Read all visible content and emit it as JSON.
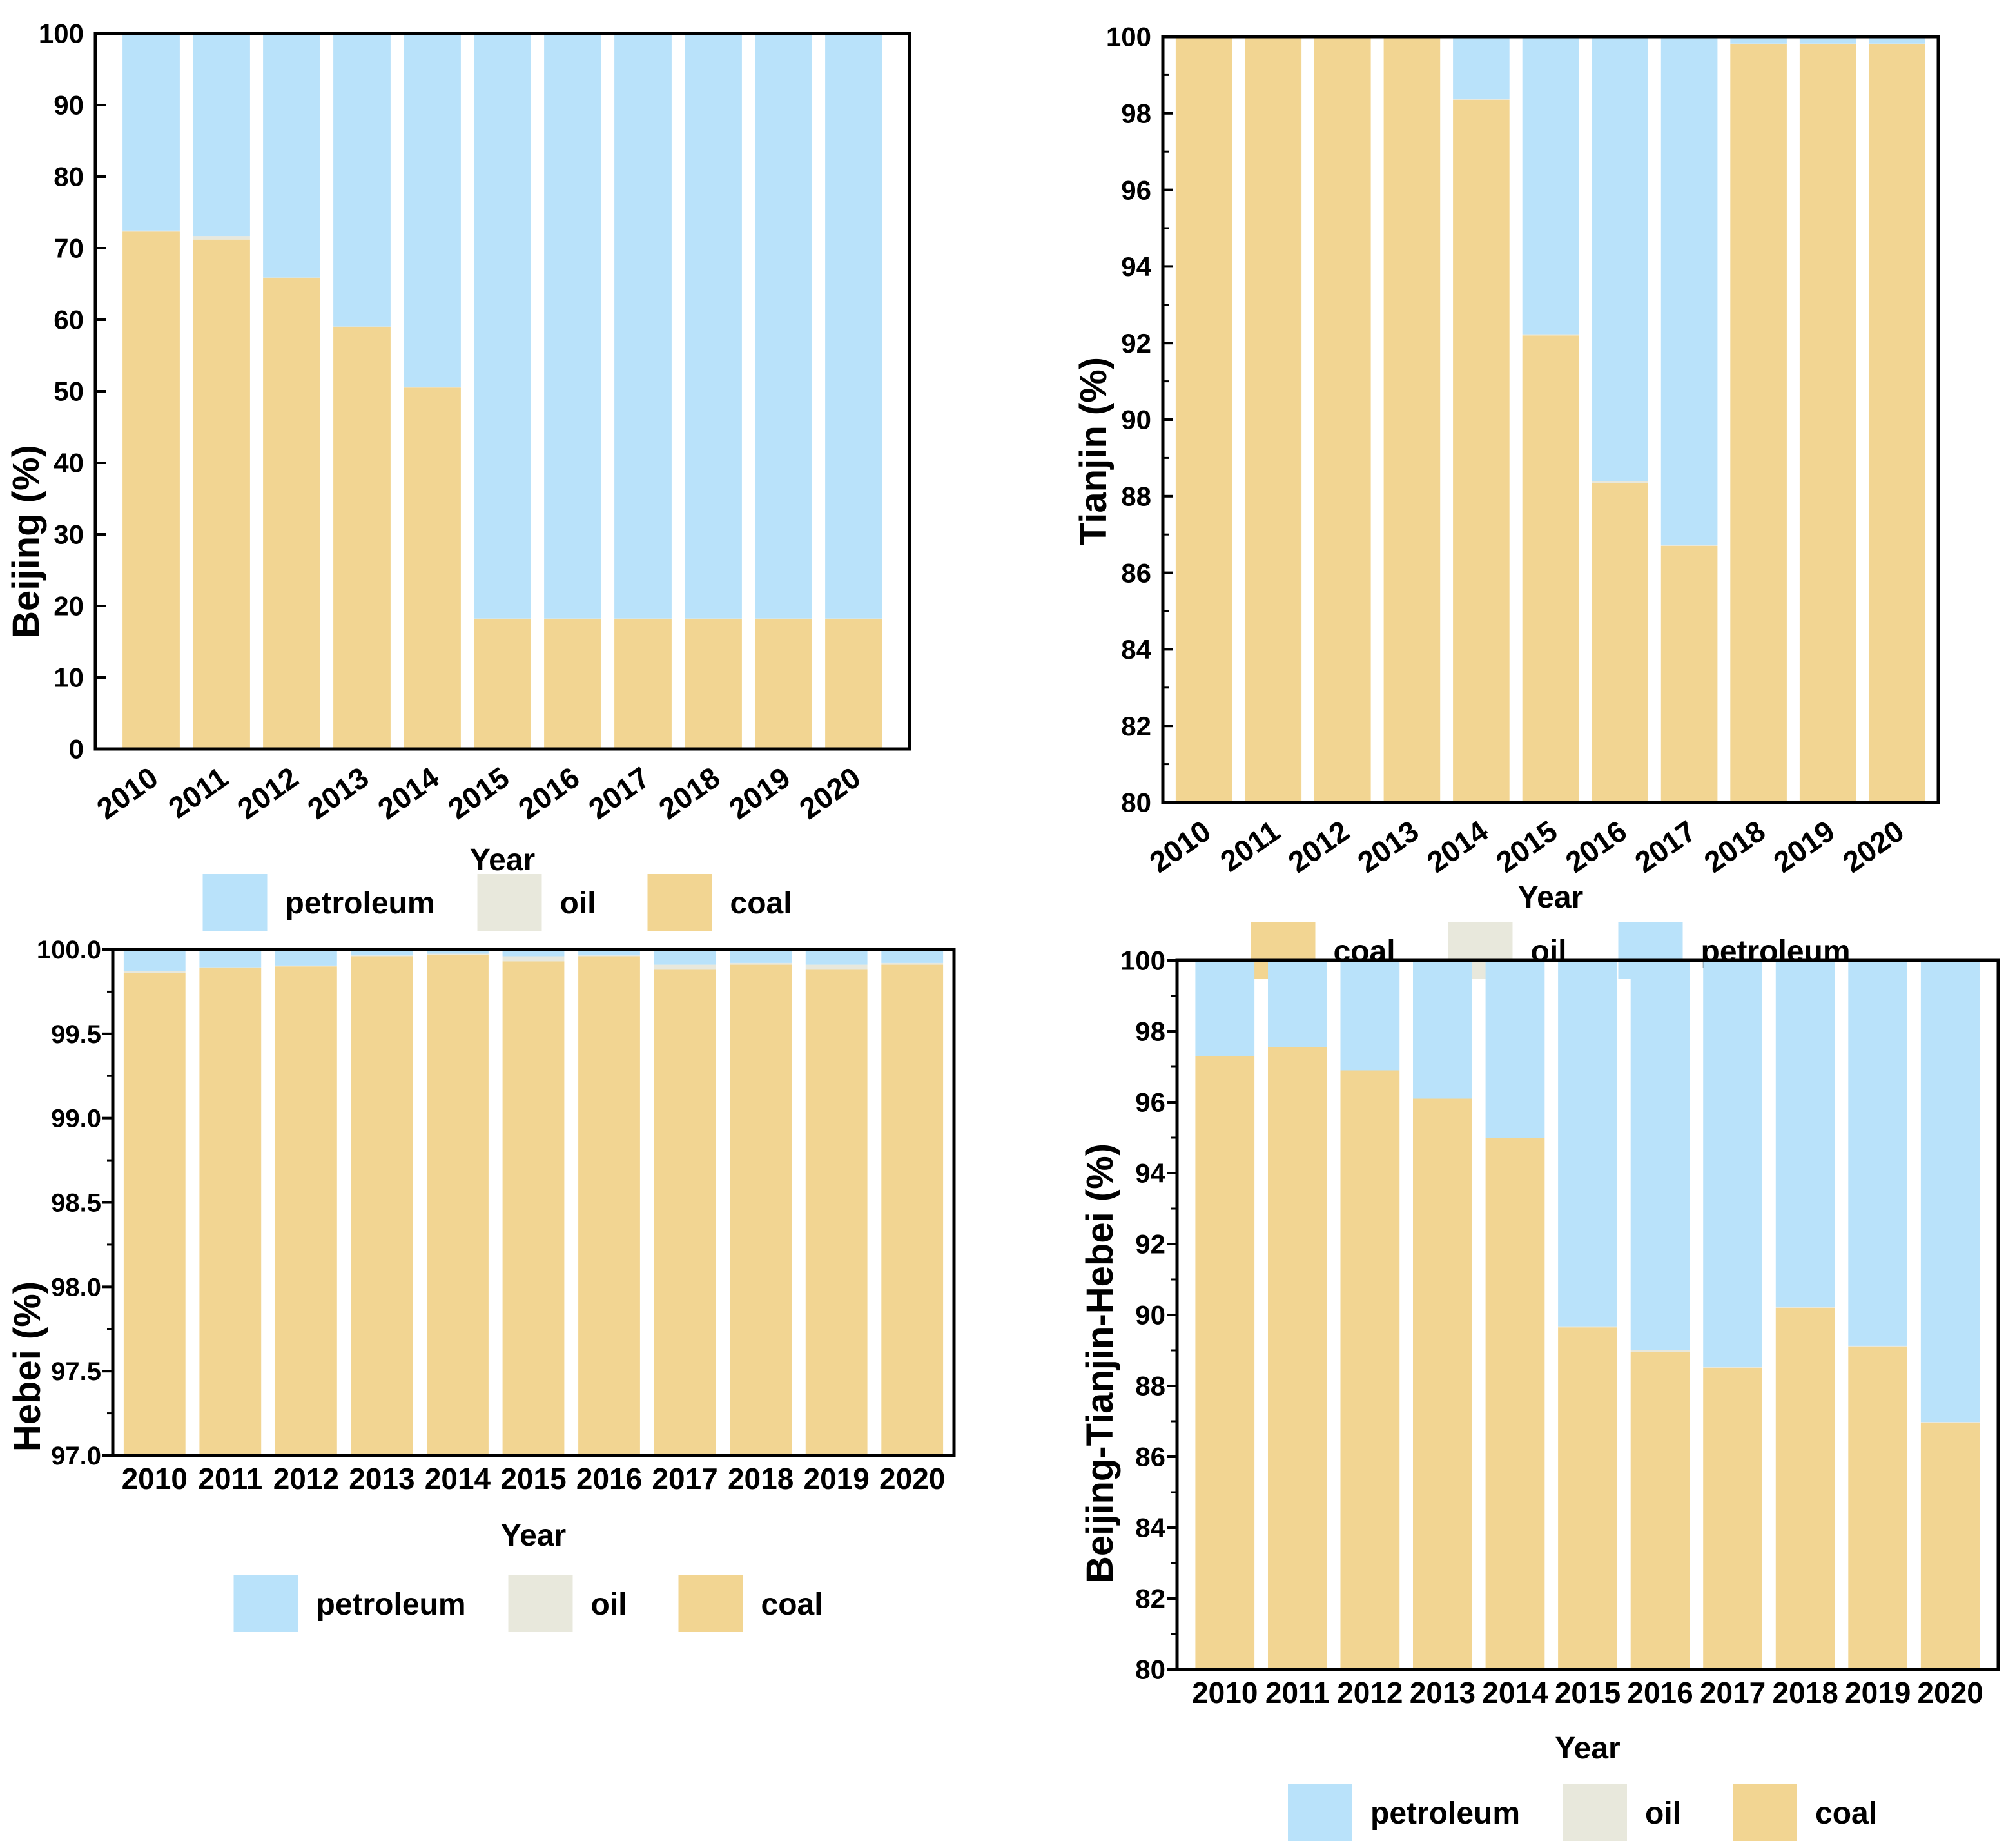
{
  "figure": {
    "background": "#ffffff",
    "description_texts": {
      "year_axis_label": "Year",
      "legend_petroleum": "petroleum",
      "legend_oil": "oil",
      "legend_coal": "coal"
    }
  },
  "colors": {
    "coal": "#F2D592",
    "oil": "#E8E8DC",
    "petroleum": "#B9E2FA",
    "axis": "#000000",
    "text": "#000000"
  },
  "chart_data": [
    {
      "type": "bar",
      "stacked": true,
      "region": "Beijing",
      "ylabel": "Beijing (%)",
      "xlabel": "Year",
      "ylim": [
        0,
        100
      ],
      "ytick_step": 10,
      "ytick_decimals": 0,
      "minor_ticks": false,
      "tick_direction": "in",
      "xtick_rotation": 35,
      "grid": false,
      "legend_position": "bottom",
      "legend": [
        "petroleum",
        "oil",
        "coal"
      ],
      "categories": [
        "2010",
        "2011",
        "2012",
        "2013",
        "2014",
        "2015",
        "2016",
        "2017",
        "2018",
        "2019",
        "2020"
      ],
      "series": [
        {
          "name": "coal",
          "values": [
            72.3,
            71.2,
            65.8,
            59.0,
            50.5,
            18.2,
            18.2,
            18.2,
            18.2,
            18.2,
            18.2
          ]
        },
        {
          "name": "oil",
          "values": [
            0.15,
            0.5,
            0.1,
            0.05,
            0.05,
            0.03,
            0.03,
            0.03,
            0.03,
            0.03,
            0.03
          ]
        },
        {
          "name": "petroleum",
          "values": [
            27.55,
            28.3,
            34.1,
            40.95,
            49.45,
            81.77,
            81.77,
            81.77,
            81.77,
            81.77,
            81.77
          ]
        }
      ]
    },
    {
      "type": "bar",
      "stacked": true,
      "region": "Tianjin",
      "ylabel": "Tianjin (%)",
      "xlabel": "Year",
      "ylim": [
        80,
        100
      ],
      "ytick_step": 2,
      "ytick_decimals": 0,
      "minor_ticks": true,
      "tick_direction": "in",
      "xtick_rotation": 35,
      "grid": false,
      "legend_position": "bottom",
      "legend": [
        "coal",
        "oil",
        "petroleum"
      ],
      "categories": [
        "2010",
        "2011",
        "2012",
        "2013",
        "2014",
        "2015",
        "2016",
        "2017",
        "2018",
        "2019",
        "2020"
      ],
      "series": [
        {
          "name": "coal",
          "values": [
            100,
            100,
            100,
            100,
            98.35,
            92.2,
            88.35,
            86.7,
            99.8,
            99.8,
            99.8
          ]
        },
        {
          "name": "oil",
          "values": [
            0,
            0,
            0,
            0,
            0.03,
            0.03,
            0.05,
            0.03,
            0.02,
            0.02,
            0.02
          ]
        },
        {
          "name": "petroleum",
          "values": [
            0,
            0,
            0,
            0,
            1.62,
            7.77,
            11.6,
            13.27,
            0.18,
            0.18,
            0.18
          ]
        }
      ]
    },
    {
      "type": "bar",
      "stacked": true,
      "region": "Hebei",
      "ylabel": "Hebei (%)",
      "xlabel": "Year",
      "ylim": [
        97,
        100
      ],
      "ytick_step": 0.5,
      "ytick_decimals": 1,
      "minor_ticks": true,
      "tick_direction": "out",
      "xtick_rotation": 0,
      "grid": false,
      "legend_position": "bottom",
      "legend": [
        "petroleum",
        "oil",
        "coal"
      ],
      "categories": [
        "2010",
        "2011",
        "2012",
        "2013",
        "2014",
        "2015",
        "2016",
        "2017",
        "2018",
        "2019",
        "2020"
      ],
      "series": [
        {
          "name": "coal",
          "values": [
            99.86,
            99.89,
            99.9,
            99.96,
            99.97,
            99.93,
            99.96,
            99.88,
            99.91,
            99.88,
            99.91
          ]
        },
        {
          "name": "oil",
          "values": [
            0.01,
            0.005,
            0.005,
            0.005,
            0.005,
            0.03,
            0.005,
            0.03,
            0.01,
            0.03,
            0.01
          ]
        },
        {
          "name": "petroleum",
          "values": [
            0.13,
            0.105,
            0.095,
            0.035,
            0.025,
            0.04,
            0.035,
            0.09,
            0.08,
            0.09,
            0.08
          ]
        }
      ]
    },
    {
      "type": "bar",
      "stacked": true,
      "region": "Beijing-Tianjin-Hebei",
      "ylabel": "Beijing-Tianjin-Hebei (%)",
      "xlabel": "Year",
      "ylim": [
        80,
        100
      ],
      "ytick_step": 2,
      "ytick_decimals": 0,
      "minor_ticks": true,
      "tick_direction": "out",
      "xtick_rotation": 0,
      "grid": false,
      "legend_position": "bottom",
      "legend": [
        "petroleum",
        "oil",
        "coal"
      ],
      "categories": [
        "2010",
        "2011",
        "2012",
        "2013",
        "2014",
        "2015",
        "2016",
        "2017",
        "2018",
        "2019",
        "2020"
      ],
      "series": [
        {
          "name": "coal",
          "values": [
            97.3,
            97.55,
            96.9,
            96.1,
            95.0,
            89.65,
            88.95,
            88.5,
            90.2,
            89.1,
            86.95
          ]
        },
        {
          "name": "oil",
          "values": [
            0,
            0,
            0,
            0,
            0,
            0.03,
            0.05,
            0.03,
            0.03,
            0.03,
            0.03
          ]
        },
        {
          "name": "petroleum",
          "values": [
            2.7,
            2.45,
            3.1,
            3.9,
            5.0,
            10.32,
            11.0,
            11.47,
            9.77,
            10.87,
            13.02
          ]
        }
      ]
    }
  ]
}
